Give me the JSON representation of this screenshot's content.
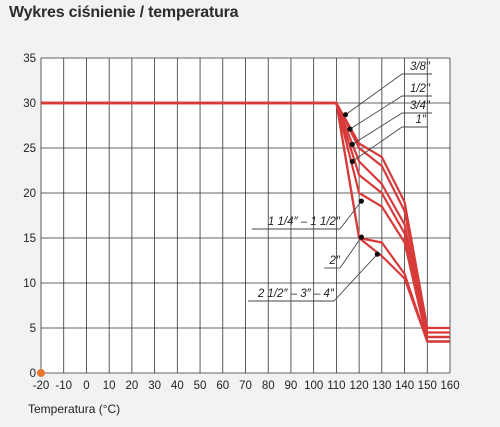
{
  "chart_data": {
    "type": "line",
    "title": "Wykres ciśnienie / temperatura",
    "xlabel": "Temperatura (°C)",
    "ylabel": "",
    "xlim": [
      -20,
      160
    ],
    "ylim": [
      0,
      35
    ],
    "x_ticks": [
      -20,
      -10,
      0,
      10,
      20,
      30,
      40,
      50,
      60,
      70,
      80,
      90,
      100,
      110,
      120,
      130,
      140,
      150,
      160
    ],
    "y_ticks": [
      0,
      5,
      10,
      15,
      20,
      25,
      30,
      35
    ],
    "grid": true,
    "line_color": "#d83a3a",
    "grid_color": "#333333",
    "origin_marker_color": "#e8762b",
    "series": [
      {
        "name": "3/8″",
        "x": [
          -20,
          110,
          120,
          130,
          140,
          150,
          160
        ],
        "y": [
          30,
          30,
          25.5,
          24,
          19,
          5,
          5
        ]
      },
      {
        "name": "1/2″",
        "x": [
          -20,
          110,
          120,
          130,
          140,
          150,
          160
        ],
        "y": [
          30,
          30,
          25,
          23,
          18,
          4.5,
          4.5
        ]
      },
      {
        "name": "3/4″",
        "x": [
          -20,
          110,
          120,
          130,
          140,
          150,
          160
        ],
        "y": [
          30,
          30,
          23.5,
          21,
          16.5,
          4,
          4
        ]
      },
      {
        "name": "1″",
        "x": [
          -20,
          110,
          120,
          130,
          140,
          150,
          160
        ],
        "y": [
          30,
          30,
          22,
          20,
          15.5,
          4,
          4
        ]
      },
      {
        "name": "1 1/4″ – 1 1/2″",
        "x": [
          -20,
          110,
          120,
          130,
          140,
          150,
          160
        ],
        "y": [
          30,
          30,
          20,
          18.5,
          14.5,
          3.5,
          3.5
        ]
      },
      {
        "name": "2″",
        "x": [
          -20,
          110,
          120,
          130,
          140,
          150,
          160
        ],
        "y": [
          30,
          30,
          15,
          14.5,
          11,
          3.5,
          3.5
        ]
      },
      {
        "name": "2 1/2″ – 3″ – 4″",
        "x": [
          -20,
          110,
          120,
          130,
          140,
          150,
          160
        ],
        "y": [
          30,
          30,
          15,
          13,
          10.5,
          3.5,
          3.5
        ]
      }
    ],
    "annotations": [
      {
        "text": "3/8″",
        "point": [
          114,
          28.7
        ]
      },
      {
        "text": "1/2″",
        "point": [
          116,
          27.1
        ]
      },
      {
        "text": "3/4″",
        "point": [
          117,
          25.4
        ]
      },
      {
        "text": "1″",
        "point": [
          117,
          23.5
        ]
      },
      {
        "text": "1 1/4″ – 1 1/2″",
        "point": [
          121,
          19.1
        ]
      },
      {
        "text": "2″",
        "point": [
          121,
          15.1
        ]
      },
      {
        "text": "2 1/2″ – 3″ – 4″",
        "point": [
          128,
          13.2
        ]
      }
    ]
  }
}
